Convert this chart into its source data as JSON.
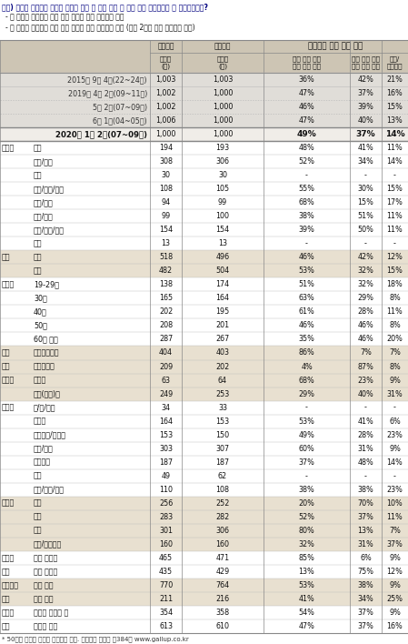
{
  "question": "질문) 귀하는 국회의원 선거와 관련해 다음 두 가지 주장 중 어느 쪽에 조금이라도 더 동의하십니까?",
  "bullet1": "- 현 정부를 지원하기 위해 여당 후보가 많이 당선돼야 한다",
  "bullet2": "- 현 정부를 견제하기 위해 야당 후보가 많이 당선돼야 한다 (보기 2가지 순서 로테이션 제시)",
  "footer": "* 50사례 미만은 수치를 제시하지 않음. 한국갤럽 데일리 제384호 www.gallup.co.kr",
  "rows": [
    {
      "label1": "2015년 9월 4주(22~24일)",
      "label2": "",
      "n1": "1,003",
      "n2": "1,003",
      "v1": "36%",
      "v2": "42%",
      "v3": "21%",
      "type": "history",
      "shade": false,
      "dot_above": false
    },
    {
      "label1": "2019년 4월 2주(09~11일)",
      "label2": "",
      "n1": "1,002",
      "n2": "1,000",
      "v1": "47%",
      "v2": "37%",
      "v3": "16%",
      "type": "history",
      "shade": false,
      "dot_above": false
    },
    {
      "label1": "5월 2주(07~09일)",
      "label2": "",
      "n1": "1,002",
      "n2": "1,000",
      "v1": "46%",
      "v2": "39%",
      "v3": "15%",
      "type": "history",
      "shade": false,
      "dot_above": true
    },
    {
      "label1": "6월 1주(04~05일)",
      "label2": "",
      "n1": "1,006",
      "n2": "1,000",
      "v1": "47%",
      "v2": "40%",
      "v3": "13%",
      "type": "history",
      "shade": false,
      "dot_above": true
    },
    {
      "label1": "2020년 1월 2주(07~09일)",
      "label2": "",
      "n1": "1,000",
      "n2": "1,000",
      "v1": "49%",
      "v2": "37%",
      "v3": "14%",
      "type": "main",
      "shade": false,
      "dot_above": false
    },
    {
      "label1": "지역별",
      "label2": "서울",
      "n1": "194",
      "n2": "193",
      "v1": "48%",
      "v2": "41%",
      "v3": "11%",
      "type": "sub",
      "shade": false,
      "dot_above": false
    },
    {
      "label1": "",
      "label2": "인천/경기",
      "n1": "308",
      "n2": "306",
      "v1": "52%",
      "v2": "34%",
      "v3": "14%",
      "type": "sub",
      "shade": false,
      "dot_above": false
    },
    {
      "label1": "",
      "label2": "강원",
      "n1": "30",
      "n2": "30",
      "v1": "-",
      "v2": "-",
      "v3": "-",
      "type": "sub",
      "shade": false,
      "dot_above": false
    },
    {
      "label1": "",
      "label2": "대전/세종/충청",
      "n1": "108",
      "n2": "105",
      "v1": "55%",
      "v2": "30%",
      "v3": "15%",
      "type": "sub",
      "shade": false,
      "dot_above": false
    },
    {
      "label1": "",
      "label2": "광주/전라",
      "n1": "94",
      "n2": "99",
      "v1": "68%",
      "v2": "15%",
      "v3": "17%",
      "type": "sub",
      "shade": false,
      "dot_above": false
    },
    {
      "label1": "",
      "label2": "대구/경북",
      "n1": "99",
      "n2": "100",
      "v1": "38%",
      "v2": "51%",
      "v3": "11%",
      "type": "sub",
      "shade": false,
      "dot_above": false
    },
    {
      "label1": "",
      "label2": "부산/울산/경남",
      "n1": "154",
      "n2": "154",
      "v1": "39%",
      "v2": "50%",
      "v3": "11%",
      "type": "sub",
      "shade": false,
      "dot_above": false
    },
    {
      "label1": "",
      "label2": "제주",
      "n1": "13",
      "n2": "13",
      "v1": "-",
      "v2": "-",
      "v3": "-",
      "type": "sub",
      "shade": false,
      "dot_above": false
    },
    {
      "label1": "성별",
      "label2": "남성",
      "n1": "518",
      "n2": "496",
      "v1": "46%",
      "v2": "42%",
      "v3": "12%",
      "type": "sub",
      "shade": true,
      "dot_above": false
    },
    {
      "label1": "",
      "label2": "여성",
      "n1": "482",
      "n2": "504",
      "v1": "53%",
      "v2": "32%",
      "v3": "15%",
      "type": "sub",
      "shade": true,
      "dot_above": false
    },
    {
      "label1": "연령별",
      "label2": "19-29세",
      "n1": "138",
      "n2": "174",
      "v1": "51%",
      "v2": "32%",
      "v3": "18%",
      "type": "sub",
      "shade": false,
      "dot_above": false
    },
    {
      "label1": "",
      "label2": "30대",
      "n1": "165",
      "n2": "164",
      "v1": "63%",
      "v2": "29%",
      "v3": "8%",
      "type": "sub",
      "shade": false,
      "dot_above": false
    },
    {
      "label1": "",
      "label2": "40대",
      "n1": "202",
      "n2": "195",
      "v1": "61%",
      "v2": "28%",
      "v3": "11%",
      "type": "sub",
      "shade": false,
      "dot_above": false
    },
    {
      "label1": "",
      "label2": "50대",
      "n1": "208",
      "n2": "201",
      "v1": "46%",
      "v2": "46%",
      "v3": "8%",
      "type": "sub",
      "shade": false,
      "dot_above": false
    },
    {
      "label1": "",
      "label2": "60대 이상",
      "n1": "287",
      "n2": "267",
      "v1": "35%",
      "v2": "46%",
      "v3": "20%",
      "type": "sub",
      "shade": false,
      "dot_above": false
    },
    {
      "label1": "주요",
      "label2": "더불어민주당",
      "n1": "404",
      "n2": "403",
      "v1": "86%",
      "v2": "7%",
      "v3": "7%",
      "type": "sub",
      "shade": true,
      "dot_above": false
    },
    {
      "label1": "지지",
      "label2": "자유한국당",
      "n1": "209",
      "n2": "202",
      "v1": "4%",
      "v2": "87%",
      "v3": "8%",
      "type": "sub",
      "shade": true,
      "dot_above": false
    },
    {
      "label1": "정당별",
      "label2": "정의당",
      "n1": "63",
      "n2": "64",
      "v1": "68%",
      "v2": "23%",
      "v3": "9%",
      "type": "sub",
      "shade": true,
      "dot_above": false
    },
    {
      "label1": "",
      "label2": "무당(無黨)층",
      "n1": "249",
      "n2": "253",
      "v1": "29%",
      "v2": "40%",
      "v3": "31%",
      "type": "sub",
      "shade": true,
      "dot_above": false
    },
    {
      "label1": "직업별",
      "label2": "농/임/어업",
      "n1": "34",
      "n2": "33",
      "v1": "-",
      "v2": "-",
      "v3": "-",
      "type": "sub",
      "shade": false,
      "dot_above": false
    },
    {
      "label1": "",
      "label2": "자영업",
      "n1": "164",
      "n2": "153",
      "v1": "53%",
      "v2": "41%",
      "v3": "6%",
      "type": "sub",
      "shade": false,
      "dot_above": false
    },
    {
      "label1": "",
      "label2": "기능노무/서비스",
      "n1": "153",
      "n2": "150",
      "v1": "49%",
      "v2": "28%",
      "v3": "23%",
      "type": "sub",
      "shade": false,
      "dot_above": false
    },
    {
      "label1": "",
      "label2": "사무/관리",
      "n1": "303",
      "n2": "307",
      "v1": "60%",
      "v2": "31%",
      "v3": "9%",
      "type": "sub",
      "shade": false,
      "dot_above": false
    },
    {
      "label1": "",
      "label2": "전업주부",
      "n1": "187",
      "n2": "187",
      "v1": "37%",
      "v2": "48%",
      "v3": "14%",
      "type": "sub",
      "shade": false,
      "dot_above": false
    },
    {
      "label1": "",
      "label2": "학생",
      "n1": "49",
      "n2": "62",
      "v1": "-",
      "v2": "-",
      "v3": "-",
      "type": "sub",
      "shade": false,
      "dot_above": false
    },
    {
      "label1": "",
      "label2": "무직/은퇴/기타",
      "n1": "110",
      "n2": "108",
      "v1": "38%",
      "v2": "38%",
      "v3": "23%",
      "type": "sub",
      "shade": false,
      "dot_above": false
    },
    {
      "label1": "성향별",
      "label2": "보수",
      "n1": "256",
      "n2": "252",
      "v1": "20%",
      "v2": "70%",
      "v3": "10%",
      "type": "sub",
      "shade": true,
      "dot_above": false
    },
    {
      "label1": "",
      "label2": "중도",
      "n1": "283",
      "n2": "282",
      "v1": "52%",
      "v2": "37%",
      "v3": "11%",
      "type": "sub",
      "shade": true,
      "dot_above": false
    },
    {
      "label1": "",
      "label2": "진보",
      "n1": "301",
      "n2": "306",
      "v1": "80%",
      "v2": "13%",
      "v3": "7%",
      "type": "sub",
      "shade": true,
      "dot_above": false
    },
    {
      "label1": "",
      "label2": "모름/응답거절",
      "n1": "160",
      "n2": "160",
      "v1": "32%",
      "v2": "31%",
      "v3": "37%",
      "type": "sub",
      "shade": true,
      "dot_above": false
    },
    {
      "label1": "대통령",
      "label2": "긍정 평가자",
      "n1": "465",
      "n2": "471",
      "v1": "85%",
      "v2": "6%",
      "v3": "9%",
      "type": "sub",
      "shade": false,
      "dot_above": false
    },
    {
      "label1": "직무",
      "label2": "부정 평가자",
      "n1": "435",
      "n2": "429",
      "v1": "13%",
      "v2": "75%",
      "v3": "12%",
      "type": "sub",
      "shade": false,
      "dot_above": false
    },
    {
      "label1": "국회의원",
      "label2": "관심 있다",
      "n1": "770",
      "n2": "764",
      "v1": "53%",
      "v2": "38%",
      "v3": "9%",
      "type": "sub",
      "shade": true,
      "dot_above": false
    },
    {
      "label1": "선거",
      "label2": "관심 없다",
      "n1": "211",
      "n2": "216",
      "v1": "41%",
      "v2": "34%",
      "v3": "25%",
      "type": "sub",
      "shade": true,
      "dot_above": false
    },
    {
      "label1": "정치적",
      "label2": "주변에 밝히는 편",
      "n1": "354",
      "n2": "358",
      "v1": "54%",
      "v2": "37%",
      "v3": "9%",
      "type": "sub",
      "shade": false,
      "dot_above": false
    },
    {
      "label1": "견해",
      "label2": "그렇지 않음",
      "n1": "613",
      "n2": "610",
      "v1": "47%",
      "v2": "37%",
      "v3": "16%",
      "type": "sub",
      "shade": false,
      "dot_above": false
    }
  ],
  "bg_header": "#cdc5b4",
  "bg_white": "#ffffff",
  "bg_shade": "#e8e0d0",
  "bg_history": "#e0ddd8",
  "bg_main_row": "#f0ede8",
  "border_dark": "#888888",
  "border_light": "#bbbbbb",
  "text_dark": "#111111",
  "text_blue": "#000080",
  "col_positions": [
    0,
    130,
    165,
    200,
    290,
    385,
    420,
    449
  ]
}
